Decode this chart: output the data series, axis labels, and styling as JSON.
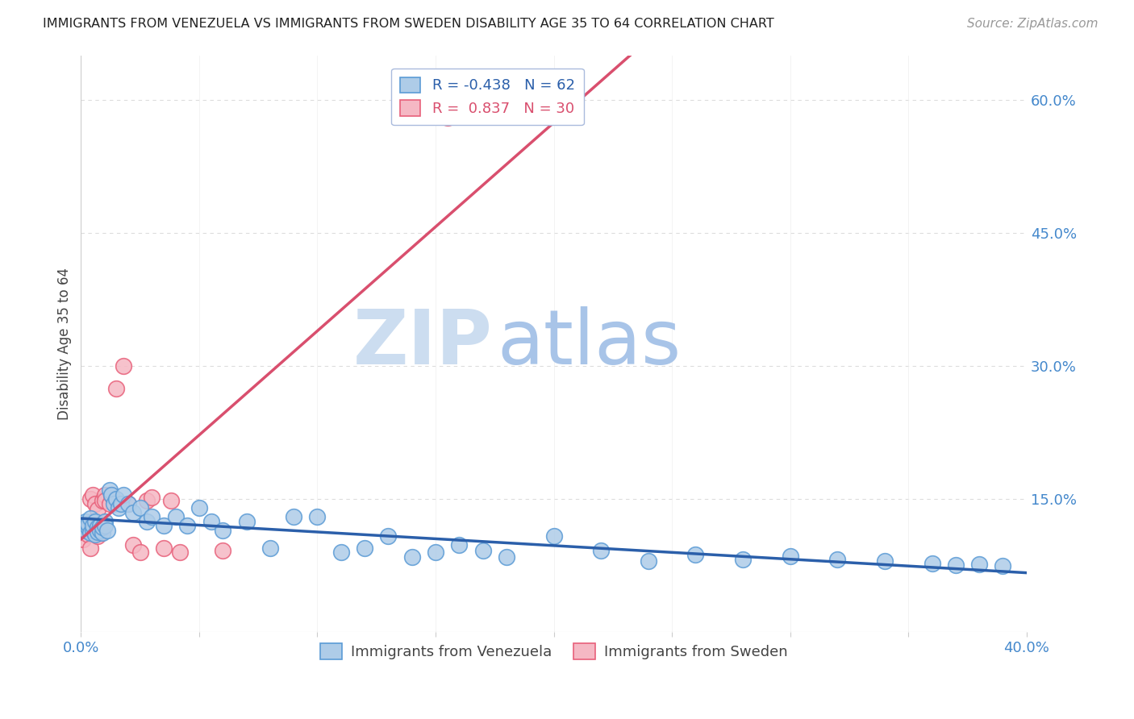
{
  "title": "IMMIGRANTS FROM VENEZUELA VS IMMIGRANTS FROM SWEDEN DISABILITY AGE 35 TO 64 CORRELATION CHART",
  "source": "Source: ZipAtlas.com",
  "ylabel": "Disability Age 35 to 64",
  "xlim": [
    0.0,
    0.4
  ],
  "ylim": [
    0.0,
    0.65
  ],
  "xticks": [
    0.0,
    0.05,
    0.1,
    0.15,
    0.2,
    0.25,
    0.3,
    0.35,
    0.4
  ],
  "xticklabels": [
    "0.0%",
    "",
    "",
    "",
    "",
    "",
    "",
    "",
    "40.0%"
  ],
  "yticks_right": [
    0.0,
    0.15,
    0.3,
    0.45,
    0.6
  ],
  "yticklabels_right": [
    "",
    "15.0%",
    "30.0%",
    "45.0%",
    "60.0%"
  ],
  "venezuela_color": "#aecce8",
  "sweden_color": "#f5b8c4",
  "venezuela_edge_color": "#5b9bd5",
  "sweden_edge_color": "#e8607a",
  "venezuela_line_color": "#2b5faa",
  "sweden_line_color": "#d94f6e",
  "legend_R_venezuela": "-0.438",
  "legend_N_venezuela": "62",
  "legend_R_sweden": "0.837",
  "legend_N_sweden": "30",
  "watermark_zip": "ZIP",
  "watermark_atlas": "atlas",
  "watermark_color_zip": "#ccddf0",
  "watermark_color_atlas": "#a8c4e8",
  "grid_color": "#dddddd",
  "background_color": "#ffffff",
  "venezuela_x": [
    0.001,
    0.002,
    0.002,
    0.003,
    0.003,
    0.004,
    0.004,
    0.005,
    0.005,
    0.006,
    0.006,
    0.007,
    0.007,
    0.008,
    0.008,
    0.009,
    0.009,
    0.01,
    0.01,
    0.011,
    0.012,
    0.013,
    0.014,
    0.015,
    0.016,
    0.017,
    0.018,
    0.02,
    0.022,
    0.025,
    0.028,
    0.03,
    0.035,
    0.04,
    0.045,
    0.05,
    0.055,
    0.06,
    0.07,
    0.08,
    0.09,
    0.1,
    0.11,
    0.12,
    0.13,
    0.14,
    0.15,
    0.16,
    0.17,
    0.18,
    0.2,
    0.22,
    0.24,
    0.26,
    0.28,
    0.3,
    0.32,
    0.34,
    0.36,
    0.37,
    0.38,
    0.39
  ],
  "venezuela_y": [
    0.12,
    0.125,
    0.115,
    0.118,
    0.122,
    0.112,
    0.128,
    0.115,
    0.12,
    0.11,
    0.125,
    0.118,
    0.113,
    0.12,
    0.115,
    0.112,
    0.118,
    0.125,
    0.12,
    0.115,
    0.16,
    0.155,
    0.145,
    0.15,
    0.14,
    0.145,
    0.155,
    0.145,
    0.135,
    0.14,
    0.125,
    0.13,
    0.12,
    0.13,
    0.12,
    0.14,
    0.125,
    0.115,
    0.125,
    0.095,
    0.13,
    0.13,
    0.09,
    0.095,
    0.108,
    0.085,
    0.09,
    0.098,
    0.092,
    0.085,
    0.108,
    0.092,
    0.08,
    0.088,
    0.082,
    0.086,
    0.082,
    0.08,
    0.078,
    0.076,
    0.077,
    0.075
  ],
  "sweden_x": [
    0.001,
    0.002,
    0.003,
    0.003,
    0.004,
    0.004,
    0.005,
    0.005,
    0.006,
    0.006,
    0.007,
    0.007,
    0.008,
    0.009,
    0.01,
    0.01,
    0.012,
    0.013,
    0.015,
    0.018,
    0.02,
    0.022,
    0.025,
    0.028,
    0.03,
    0.035,
    0.038,
    0.042,
    0.06,
    0.155
  ],
  "sweden_y": [
    0.105,
    0.12,
    0.115,
    0.11,
    0.15,
    0.095,
    0.125,
    0.155,
    0.145,
    0.118,
    0.138,
    0.108,
    0.112,
    0.148,
    0.155,
    0.148,
    0.145,
    0.155,
    0.275,
    0.3,
    0.145,
    0.098,
    0.09,
    0.148,
    0.152,
    0.095,
    0.148,
    0.09,
    0.092,
    0.58
  ],
  "sweden_line_start_x": 0.0,
  "sweden_line_end_x": 0.4,
  "venezuela_line_start_x": 0.0,
  "venezuela_line_end_x": 0.4
}
